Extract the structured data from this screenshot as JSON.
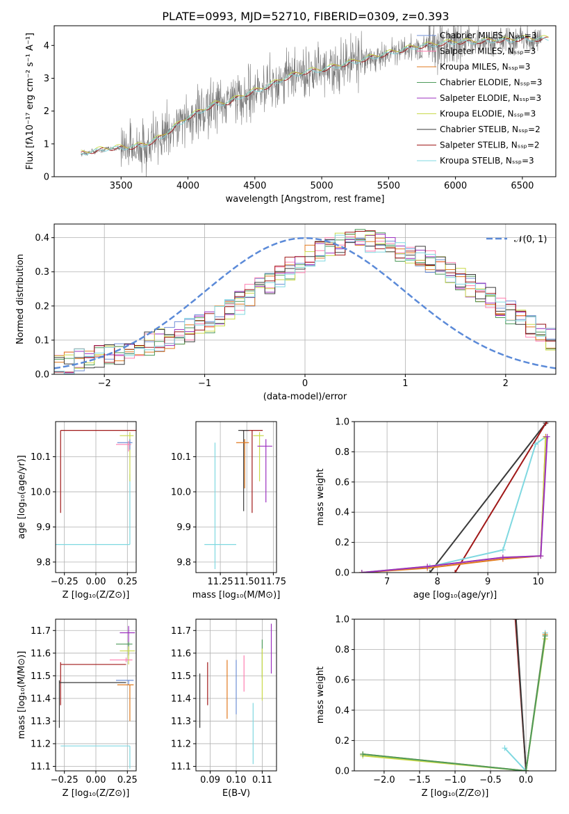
{
  "figure_title": "PLATE=0993, MJD=52710, FIBERID=0309, z=0.393",
  "colors": {
    "chabrier_miles": "#6f8fd6",
    "salpeter_miles": "#ff7fb0",
    "kroupa_miles": "#e07a1f",
    "chabrier_elodie": "#4d9a5a",
    "salpeter_elodie": "#9b2fbf",
    "kroupa_elodie": "#c9d94a",
    "chabrier_stelib": "#3a3a3a",
    "salpeter_stelib": "#a01818",
    "kroupa_stelib": "#7fd8e0",
    "observed": "#777777",
    "normal_curve": "#5b8ad8"
  },
  "chart_data": [
    {
      "type": "line",
      "panel": "spectrum",
      "title": "PLATE=0993, MJD=52710, FIBERID=0309, z=0.393",
      "xlabel": "wavelength [Angstrom, rest frame]",
      "ylabel": "Flux [fλ10⁻¹⁷ erg cm⁻² s⁻¹ A⁻¹]",
      "xlim": [
        3000,
        6750
      ],
      "ylim": [
        0,
        4.6
      ],
      "xticks": [
        "3500",
        "4000",
        "4500",
        "5000",
        "5500",
        "6000",
        "6500"
      ],
      "yticks": [
        "0",
        "1",
        "2",
        "3",
        "4"
      ],
      "legend_position": "top-right",
      "legend": [
        "Chabrier MILES, N_SSP=3",
        "Salpeter MILES, N_SSP=3",
        "Kroupa MILES, N_SSP=3",
        "Chabrier ELODIE, N_SSP=3",
        "Salpeter ELODIE, N_SSP=3",
        "Kroupa ELODIE, N_SSP=3",
        "Chabrier STELIB, N_SSP=2",
        "Salpeter STELIB, N_SSP=2",
        "Kroupa STELIB, N_SSP=3"
      ],
      "model_continuum": {
        "x": [
          3200,
          3400,
          3600,
          3700,
          3800,
          3900,
          4000,
          4100,
          4200,
          4300,
          4400,
          4500,
          4600,
          4700,
          4800,
          4900,
          5000,
          5100,
          5200,
          5300,
          5400,
          5500,
          5600,
          5700,
          5800,
          5900,
          6000,
          6100,
          6200,
          6300,
          6400,
          6500,
          6600,
          6700
        ],
        "y": [
          0.7,
          0.85,
          0.9,
          1.0,
          1.2,
          1.5,
          1.8,
          2.0,
          2.2,
          2.25,
          2.45,
          2.6,
          2.75,
          2.95,
          3.1,
          3.2,
          3.25,
          3.35,
          3.45,
          3.55,
          3.65,
          3.75,
          3.85,
          3.95,
          4.0,
          4.05,
          4.1,
          4.1,
          4.12,
          4.15,
          4.15,
          4.2,
          4.18,
          4.2
        ]
      },
      "observed_range": [
        3200,
        6650
      ]
    },
    {
      "type": "line",
      "panel": "residuals",
      "xlabel": "(data-model)/error",
      "ylabel": "Normed distribution",
      "xlim": [
        -2.5,
        2.5
      ],
      "ylim": [
        0,
        0.44
      ],
      "xticks": [
        "−2",
        "−1",
        "0",
        "1",
        "2"
      ],
      "yticks": [
        "0.0",
        "0.1",
        "0.2",
        "0.3",
        "0.4"
      ],
      "legend_position": "top-right",
      "legend": [
        "𝒩(0, 1)"
      ],
      "grid": true,
      "histogram_bin_width": 0.1,
      "histogram_profile": [
        0.03,
        0.035,
        0.04,
        0.045,
        0.05,
        0.055,
        0.06,
        0.07,
        0.08,
        0.09,
        0.1,
        0.11,
        0.12,
        0.13,
        0.14,
        0.15,
        0.17,
        0.19,
        0.21,
        0.23,
        0.25,
        0.27,
        0.29,
        0.31,
        0.33,
        0.35,
        0.36,
        0.37,
        0.38,
        0.39,
        0.4,
        0.39,
        0.38,
        0.37,
        0.36,
        0.35,
        0.34,
        0.33,
        0.32,
        0.3,
        0.28,
        0.26,
        0.24,
        0.22,
        0.2,
        0.18,
        0.16,
        0.14,
        0.12,
        0.1
      ]
    },
    {
      "type": "scatter",
      "panel": "age_vs_Z",
      "xlabel": "Z [log₁₀(Z/Z⊙)]",
      "ylabel": "age  [log₁₀(age/yr)]",
      "xlim": [
        -0.32,
        0.32
      ],
      "ylim": [
        9.77,
        10.2
      ],
      "xticks": [
        "−0.25",
        "0.00",
        "0.25"
      ],
      "yticks": [
        "9.8",
        "9.9",
        "10.0",
        "10.1"
      ],
      "grid": true,
      "series": [
        {
          "name": "Salpeter STELIB",
          "x": -0.28,
          "y": 10.175,
          "xerr": [
            0.0,
            0.6
          ],
          "yerr": [
            0.235,
            0.0
          ]
        },
        {
          "name": "Kroupa STELIB",
          "x": 0.27,
          "y": 9.85,
          "xerr": [
            0.6,
            0.0
          ],
          "yerr": [
            0.0,
            0.2
          ]
        },
        {
          "name": "Kroupa ELODIE",
          "x": 0.27,
          "y": 10.16,
          "xerr": [
            0.08,
            0.03
          ],
          "yerr": [
            0.13,
            0.01
          ]
        },
        {
          "name": "Chabrier MILES",
          "x": 0.27,
          "y": 10.14,
          "xerr": [
            0.1,
            0.02
          ],
          "yerr": [
            0.02,
            0.01
          ]
        },
        {
          "name": "Salpeter MILES",
          "x": 0.26,
          "y": 10.135,
          "xerr": [
            0.1,
            0.02
          ],
          "yerr": [
            0.02,
            0.01
          ]
        }
      ]
    },
    {
      "type": "scatter",
      "panel": "age_vs_mass",
      "xlabel": "mass [log₁₀(M/M⊙)]",
      "ylabel": "",
      "xlim": [
        11.02,
        11.78
      ],
      "ylim": [
        9.77,
        10.2
      ],
      "xticks": [
        "11.25",
        "11.50",
        "11.75"
      ],
      "yticks": [
        "9.8",
        "9.9",
        "10.0",
        "10.1"
      ],
      "grid": true,
      "series": [
        {
          "name": "Kroupa STELIB",
          "x": 11.2,
          "y": 9.85,
          "xerr": [
            0.1,
            0.2
          ],
          "yerr": [
            0.07,
            0.29
          ]
        },
        {
          "name": "Salpeter STELIB",
          "x": 11.55,
          "y": 10.175,
          "xerr": [
            0.1,
            0.1
          ],
          "yerr": [
            0.235,
            0.0
          ]
        },
        {
          "name": "Chabrier STELIB",
          "x": 11.47,
          "y": 10.175,
          "xerr": [
            0.05,
            0.05
          ],
          "yerr": [
            0.23,
            0.0
          ]
        },
        {
          "name": "Kroupa ELODIE",
          "x": 11.62,
          "y": 10.16,
          "xerr": [
            0.06,
            0.04
          ],
          "yerr": [
            0.13,
            0.01
          ]
        },
        {
          "name": "Salpeter ELODIE",
          "x": 11.68,
          "y": 10.13,
          "xerr": [
            0.08,
            0.06
          ],
          "yerr": [
            0.16,
            0.02
          ]
        },
        {
          "name": "Kroupa MILES",
          "x": 11.48,
          "y": 10.14,
          "xerr": [
            0.08,
            0.04
          ],
          "yerr": [
            0.13,
            0.01
          ]
        }
      ]
    },
    {
      "type": "line",
      "panel": "massweight_vs_age",
      "xlabel": "age  [log₁₀(age/yr)]",
      "ylabel": "mass weight",
      "xlim": [
        6.35,
        10.35
      ],
      "ylim": [
        0,
        1
      ],
      "xticks": [
        "7",
        "8",
        "9",
        "10"
      ],
      "yticks": [
        "0.0",
        "0.2",
        "0.4",
        "0.6",
        "0.8",
        "1.0"
      ],
      "grid": true,
      "series": [
        {
          "name": "Chabrier STELIB",
          "points": [
            [
              7.85,
              0.0
            ],
            [
              10.15,
              0.99
            ]
          ]
        },
        {
          "name": "Salpeter STELIB",
          "points": [
            [
              8.35,
              0.0
            ],
            [
              10.17,
              1.0
            ]
          ]
        },
        {
          "name": "Kroupa STELIB",
          "points": [
            [
              6.5,
              0.0
            ],
            [
              7.85,
              0.04
            ],
            [
              9.3,
              0.15
            ],
            [
              9.95,
              0.85
            ],
            [
              10.15,
              0.9
            ]
          ]
        },
        {
          "name": "Kroupa MILES",
          "points": [
            [
              6.5,
              0.0
            ],
            [
              7.8,
              0.03
            ],
            [
              9.3,
              0.09
            ],
            [
              10.05,
              0.11
            ],
            [
              10.15,
              0.9
            ]
          ]
        },
        {
          "name": "Kroupa ELODIE",
          "points": [
            [
              6.5,
              0.0
            ],
            [
              7.8,
              0.04
            ],
            [
              9.3,
              0.1
            ],
            [
              10.05,
              0.11
            ],
            [
              10.15,
              0.89
            ]
          ]
        },
        {
          "name": "Salpeter ELODIE",
          "points": [
            [
              6.5,
              0.0
            ],
            [
              7.8,
              0.04
            ],
            [
              9.3,
              0.1
            ],
            [
              10.05,
              0.11
            ],
            [
              10.18,
              0.9
            ]
          ]
        }
      ]
    },
    {
      "type": "scatter",
      "panel": "mass_vs_Z",
      "xlabel": "Z [log₁₀(Z/Z⊙)]",
      "ylabel": "mass [log₁₀(M/M⊙)]",
      "xlim": [
        -0.32,
        0.32
      ],
      "ylim": [
        11.08,
        11.75
      ],
      "xticks": [
        "−0.25",
        "0.00",
        "0.25"
      ],
      "yticks": [
        "11.1",
        "11.2",
        "11.3",
        "11.4",
        "11.5",
        "11.6",
        "11.7"
      ],
      "grid": true,
      "series": [
        {
          "name": "Salpeter STELIB",
          "x": -0.28,
          "y": 11.55,
          "xerr": [
            0.0,
            0.52
          ],
          "yerr": [
            0.18,
            0.01
          ]
        },
        {
          "name": "Chabrier STELIB",
          "x": -0.29,
          "y": 11.47,
          "xerr": [
            0.0,
            0.53
          ],
          "yerr": [
            0.2,
            0.01
          ]
        },
        {
          "name": "Kroupa STELIB",
          "x": 0.27,
          "y": 11.19,
          "xerr": [
            0.55,
            0.0
          ],
          "yerr": [
            0.1,
            0.0
          ]
        },
        {
          "name": "Salpeter ELODIE",
          "x": 0.26,
          "y": 11.69,
          "xerr": [
            0.07,
            0.05
          ],
          "yerr": [
            0.1,
            0.03
          ]
        },
        {
          "name": "Chabrier ELODIE",
          "x": 0.26,
          "y": 11.64,
          "xerr": [
            0.1,
            0.03
          ],
          "yerr": [
            0.05,
            0.01
          ]
        },
        {
          "name": "Kroupa ELODIE",
          "x": 0.26,
          "y": 11.61,
          "xerr": [
            0.07,
            0.05
          ],
          "yerr": [
            0.06,
            0.02
          ]
        },
        {
          "name": "Salpeter MILES",
          "x": 0.24,
          "y": 11.57,
          "xerr": [
            0.13,
            0.05
          ],
          "yerr": [
            0.01,
            0.01
          ]
        },
        {
          "name": "Chabrier MILES",
          "x": 0.26,
          "y": 11.48,
          "xerr": [
            0.1,
            0.04
          ],
          "yerr": [
            0.02,
            0.0
          ]
        },
        {
          "name": "Kroupa MILES",
          "x": 0.27,
          "y": 11.46,
          "xerr": [
            0.1,
            0.03
          ],
          "yerr": [
            0.16,
            0.0
          ]
        }
      ]
    },
    {
      "type": "scatter",
      "panel": "mass_vs_EBV",
      "xlabel": "E(B-V)",
      "ylabel": "",
      "xlim": [
        0.0845,
        0.1155
      ],
      "ylim": [
        11.08,
        11.75
      ],
      "xticks": [
        "0.09",
        "0.10",
        "0.11"
      ],
      "yticks": [
        "11.1",
        "11.2",
        "11.3",
        "11.4",
        "11.5",
        "11.6",
        "11.7"
      ],
      "grid": true,
      "series": [
        {
          "name": "Chabrier STELIB",
          "x": 0.086,
          "ylow": 11.27,
          "yhigh": 11.51
        },
        {
          "name": "Salpeter STELIB",
          "x": 0.089,
          "ylow": 11.37,
          "yhigh": 11.56
        },
        {
          "name": "Kroupa MILES",
          "x": 0.0965,
          "ylow": 11.31,
          "yhigh": 11.57
        },
        {
          "name": "Chabrier MILES",
          "x": 0.1,
          "ylow": 11.33,
          "yhigh": 11.57
        },
        {
          "name": "Salpeter MILES",
          "x": 0.103,
          "ylow": 11.43,
          "yhigh": 11.59
        },
        {
          "name": "Kroupa STELIB",
          "x": 0.1065,
          "ylow": 11.11,
          "yhigh": 11.38
        },
        {
          "name": "Chabrier ELODIE",
          "x": 0.11,
          "ylow": 11.49,
          "yhigh": 11.66
        },
        {
          "name": "Kroupa ELODIE",
          "x": 0.11,
          "ylow": 11.39,
          "yhigh": 11.62
        },
        {
          "name": "Salpeter ELODIE",
          "x": 0.1135,
          "ylow": 11.51,
          "yhigh": 11.73
        }
      ]
    },
    {
      "type": "line",
      "panel": "massweight_vs_Z",
      "xlabel": "Z [log₁₀(Z/Z⊙)]",
      "ylabel": "mass weight",
      "xlim": [
        -2.42,
        0.42
      ],
      "ylim": [
        0,
        1
      ],
      "xticks": [
        "−2.0",
        "−1.5",
        "−1.0",
        "−0.5",
        "0.0"
      ],
      "yticks": [
        "0.0",
        "0.2",
        "0.4",
        "0.6",
        "0.8",
        "1.0"
      ],
      "grid": true,
      "series": [
        {
          "name": "Salpeter STELIB",
          "points": [
            [
              -0.15,
              1.0
            ],
            [
              0.0,
              0.0
            ]
          ]
        },
        {
          "name": "Chabrier STELIB",
          "points": [
            [
              -0.14,
              1.0
            ],
            [
              0.0,
              0.0
            ]
          ]
        },
        {
          "name": "Kroupa STELIB",
          "points": [
            [
              -0.3,
              0.15
            ],
            [
              0.0,
              0.0
            ],
            [
              0.27,
              0.91
            ]
          ]
        },
        {
          "name": "Kroupa MILES",
          "points": [
            [
              -2.3,
              0.11
            ],
            [
              0.0,
              0.0
            ],
            [
              0.27,
              0.9
            ]
          ]
        },
        {
          "name": "Kroupa ELODIE",
          "points": [
            [
              -2.3,
              0.1
            ],
            [
              0.0,
              0.0
            ],
            [
              0.27,
              0.87
            ]
          ]
        },
        {
          "name": "Chabrier ELODIE",
          "points": [
            [
              -2.3,
              0.11
            ],
            [
              0.0,
              0.0
            ],
            [
              0.27,
              0.89
            ]
          ]
        }
      ]
    }
  ]
}
